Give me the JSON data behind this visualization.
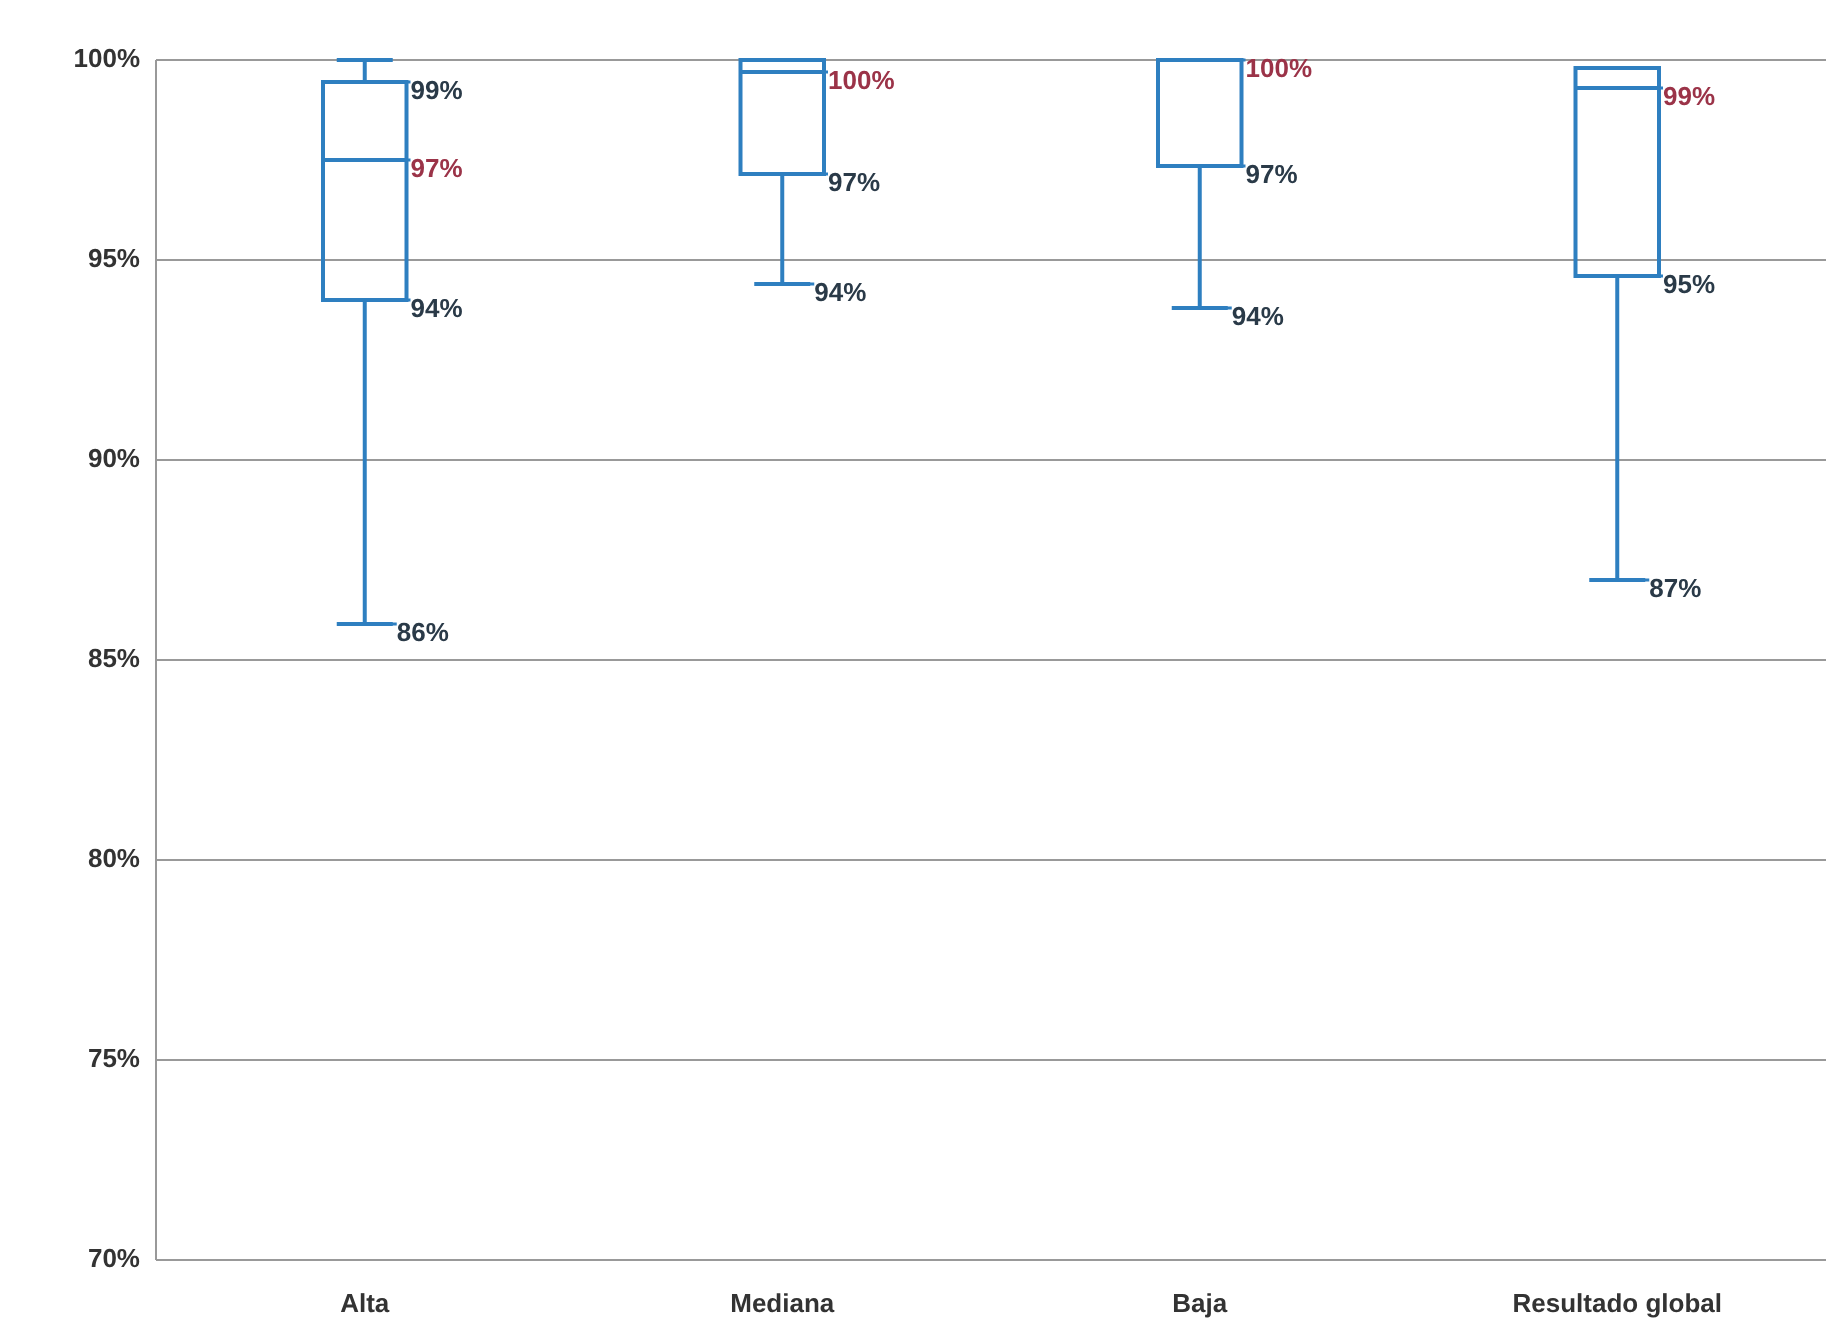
{
  "chart_data": {
    "type": "box",
    "categories": [
      "Alta",
      "Mediana",
      "Baja",
      "Resultado global"
    ],
    "boxes": [
      {
        "low": 85.9,
        "q1": 94,
        "median": 97.5,
        "q3": 99.45,
        "high": 100
      },
      {
        "low": 94.4,
        "q1": 97.15,
        "median": 99.7,
        "q3": 100,
        "high": 100
      },
      {
        "low": 93.8,
        "q1": 97.35,
        "median": 100,
        "q3": 100,
        "high": 100
      },
      {
        "low": 87,
        "q1": 94.6,
        "median": 99.3,
        "q3": 99.8,
        "high": 99.8
      }
    ],
    "color": "#2e7fc0",
    "ylim": [
      70,
      100
    ],
    "yticks": [
      {
        "value": 70,
        "label": "70%"
      },
      {
        "value": 75,
        "label": "75%"
      },
      {
        "value": 80,
        "label": "80%"
      },
      {
        "value": 85,
        "label": "85%"
      },
      {
        "value": 90,
        "label": "90%"
      },
      {
        "value": 95,
        "label": "95%"
      },
      {
        "value": 100,
        "label": "100%"
      }
    ],
    "grid": "y",
    "annotations": [
      {
        "text": "99%",
        "x": "Alta",
        "y": 99.45
      },
      {
        "text": "97%",
        "x": "Alta",
        "y": 97.5
      },
      {
        "text": "94%",
        "x": "Alta",
        "y": 94
      },
      {
        "text": "86%",
        "x": "Alta",
        "y": 85.9
      },
      {
        "text": "100%",
        "x": "Mediana",
        "y": 99.7
      },
      {
        "text": "97%",
        "x": "Mediana",
        "y": 97.15
      },
      {
        "text": "94%",
        "x": "Mediana",
        "y": 94.4
      },
      {
        "text": "100%",
        "x": "Baja",
        "y": 100
      },
      {
        "text": "97%",
        "x": "Baja",
        "y": 97.35
      },
      {
        "text": "94%",
        "x": "Baja",
        "y": 93.8
      },
      {
        "text": "99%",
        "x": "Resultado global",
        "y": 99.3
      },
      {
        "text": "95%",
        "x": "Resultado global",
        "y": 94.6
      },
      {
        "text": "87%",
        "x": "Resultado global",
        "y": 87
      }
    ]
  }
}
